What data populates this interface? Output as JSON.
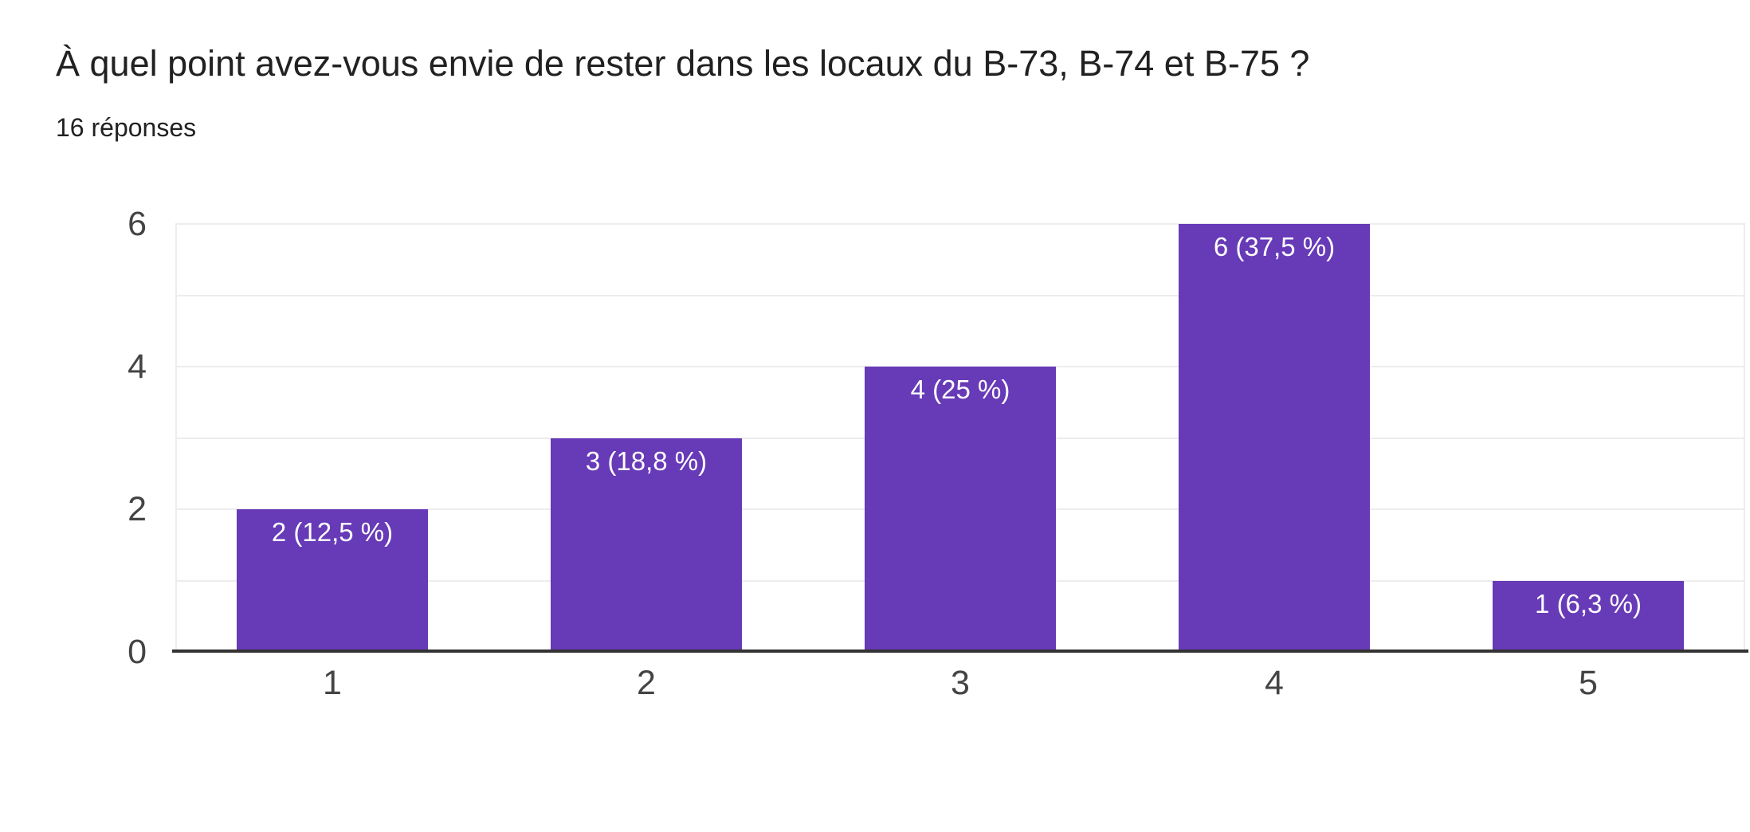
{
  "header": {
    "title": "À quel point avez-vous envie de rester dans les locaux du B-73, B-74 et B-75 ?",
    "subtitle": "16 réponses"
  },
  "chart_data": {
    "type": "bar",
    "title": "À quel point avez-vous envie de rester dans les locaux du B-73, B-74 et B-75 ?",
    "subtitle": "16 réponses",
    "categories": [
      "1",
      "2",
      "3",
      "4",
      "5"
    ],
    "values": [
      2,
      3,
      4,
      6,
      1
    ],
    "bar_labels": [
      "2 (12,5 %)",
      "3 (18,8 %)",
      "4 (25 %)",
      "6 (37,5 %)",
      "1 (6,3 %)"
    ],
    "xlabel": "",
    "ylabel": "",
    "ylim": [
      0,
      6
    ],
    "yticks": [
      0,
      2,
      4,
      6
    ],
    "gridline_step": 1,
    "grid": true,
    "legend": "none",
    "colors": {
      "bar": "#673ab7",
      "bar_label_text": "#ffffff",
      "axis_text": "#444444",
      "gridline": "#ededed",
      "baseline": "#333333",
      "title_text": "#212121",
      "background": "#ffffff"
    }
  }
}
